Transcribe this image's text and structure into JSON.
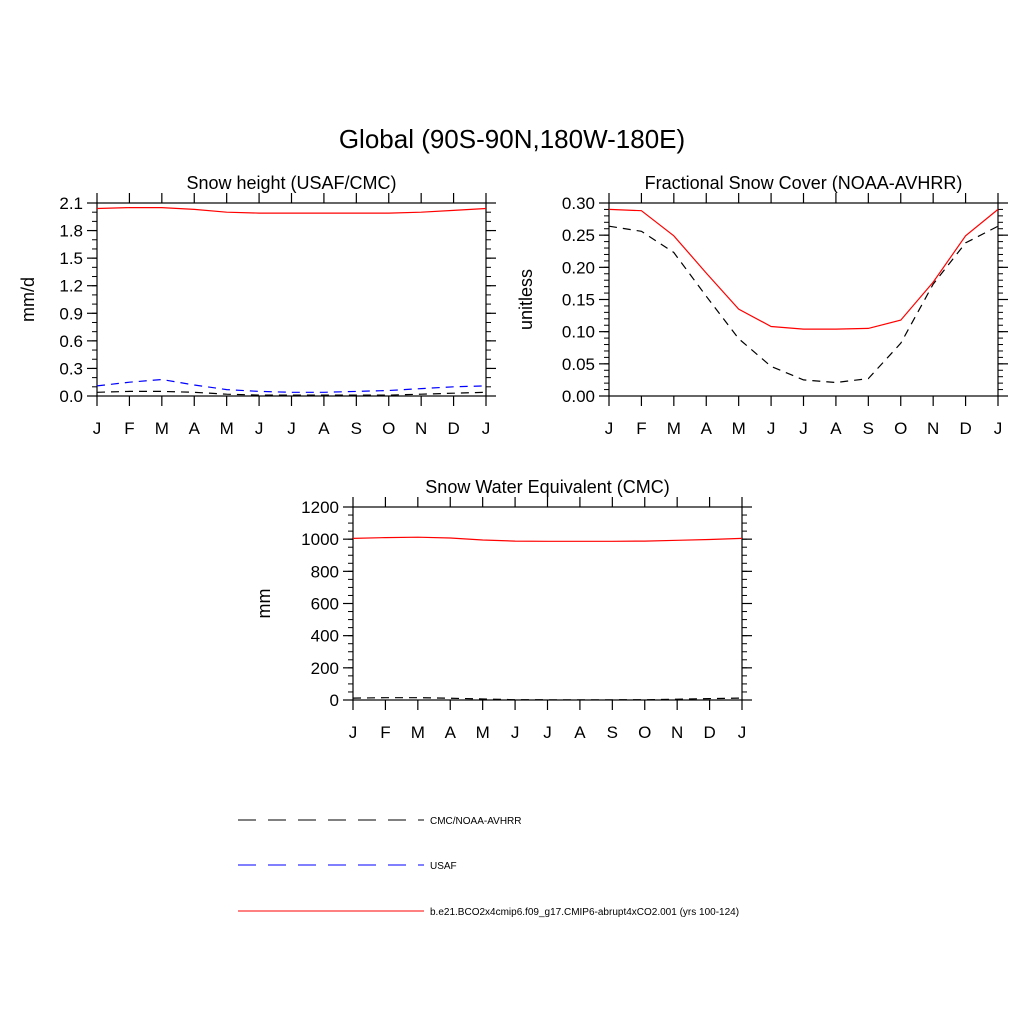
{
  "figure": {
    "main_title": "Global (90S-90N,180W-180E)"
  },
  "colors": {
    "model": "#ff0000",
    "usaf": "#0000ff",
    "cmc": "#000000",
    "axis": "#000000"
  },
  "legend": {
    "entries": [
      {
        "label": "CMC/NOAA-AVHRR",
        "color": "#000000",
        "dash": true
      },
      {
        "label": "USAF",
        "color": "#0000ff",
        "dash": true
      },
      {
        "label": "b.e21.BCO2x4cmip6.f09_g17.CMIP6-abrupt4xCO2.001 (yrs 100-124)",
        "color": "#ff0000",
        "dash": false
      }
    ]
  },
  "chart_data": [
    {
      "type": "line",
      "title": "Snow height (USAF/CMC)",
      "xlabel": "",
      "ylabel": "mm/d",
      "x": [
        "J",
        "F",
        "M",
        "A",
        "M",
        "J",
        "J",
        "A",
        "S",
        "O",
        "N",
        "D",
        "J"
      ],
      "ylim": [
        0,
        2.1
      ],
      "yticks": [
        0.0,
        0.3,
        0.6,
        0.9,
        1.2,
        1.5,
        1.8,
        2.1
      ],
      "ytick_labels": [
        "0.0",
        "0.3",
        "0.6",
        "0.9",
        "1.2",
        "1.5",
        "1.8",
        "2.1"
      ],
      "yminor": 0.1,
      "series": [
        {
          "key": "model",
          "color": "#ff0000",
          "dash": false,
          "values": [
            2.04,
            2.05,
            2.05,
            2.03,
            2.0,
            1.99,
            1.99,
            1.99,
            1.99,
            1.99,
            2.0,
            2.02,
            2.04
          ]
        },
        {
          "key": "usaf",
          "color": "#0000ff",
          "dash": true,
          "values": [
            0.11,
            0.15,
            0.18,
            0.12,
            0.07,
            0.05,
            0.04,
            0.04,
            0.05,
            0.06,
            0.08,
            0.1,
            0.11
          ]
        },
        {
          "key": "cmc",
          "color": "#000000",
          "dash": true,
          "values": [
            0.04,
            0.05,
            0.05,
            0.04,
            0.02,
            0.01,
            0.01,
            0.01,
            0.01,
            0.01,
            0.02,
            0.03,
            0.04
          ]
        }
      ]
    },
    {
      "type": "line",
      "title": "Fractional Snow Cover (NOAA-AVHRR)",
      "xlabel": "",
      "ylabel": "unitless",
      "x": [
        "J",
        "F",
        "M",
        "A",
        "M",
        "J",
        "J",
        "A",
        "S",
        "O",
        "N",
        "D",
        "J"
      ],
      "ylim": [
        0,
        0.3
      ],
      "yticks": [
        0.0,
        0.05,
        0.1,
        0.15,
        0.2,
        0.25,
        0.3
      ],
      "ytick_labels": [
        "0.00",
        "0.05",
        "0.10",
        "0.15",
        "0.20",
        "0.25",
        "0.30"
      ],
      "yminor": 0.01,
      "series": [
        {
          "key": "model",
          "color": "#ff0000",
          "dash": false,
          "values": [
            0.29,
            0.288,
            0.249,
            0.191,
            0.135,
            0.108,
            0.104,
            0.104,
            0.105,
            0.118,
            0.177,
            0.249,
            0.29
          ]
        },
        {
          "key": "cmc",
          "color": "#000000",
          "dash": true,
          "values": [
            0.264,
            0.256,
            0.223,
            0.155,
            0.089,
            0.046,
            0.025,
            0.021,
            0.027,
            0.082,
            0.174,
            0.238,
            0.264
          ]
        }
      ]
    },
    {
      "type": "line",
      "title": "Snow Water Equivalent (CMC)",
      "xlabel": "",
      "ylabel": "mm",
      "x": [
        "J",
        "F",
        "M",
        "A",
        "M",
        "J",
        "J",
        "A",
        "S",
        "O",
        "N",
        "D",
        "J"
      ],
      "ylim": [
        0,
        1200
      ],
      "yticks": [
        0,
        200,
        400,
        600,
        800,
        1000,
        1200
      ],
      "ytick_labels": [
        "0",
        "200",
        "400",
        "600",
        "800",
        "1000",
        "1200"
      ],
      "yminor": 50,
      "series": [
        {
          "key": "model",
          "color": "#ff0000",
          "dash": false,
          "values": [
            1005,
            1010,
            1012,
            1007,
            995,
            988,
            987,
            987,
            987,
            988,
            993,
            998,
            1005
          ]
        },
        {
          "key": "cmc",
          "color": "#000000",
          "dash": true,
          "values": [
            12,
            14,
            14,
            11,
            6,
            2,
            1,
            1,
            1,
            2,
            5,
            9,
            12
          ]
        }
      ]
    }
  ]
}
